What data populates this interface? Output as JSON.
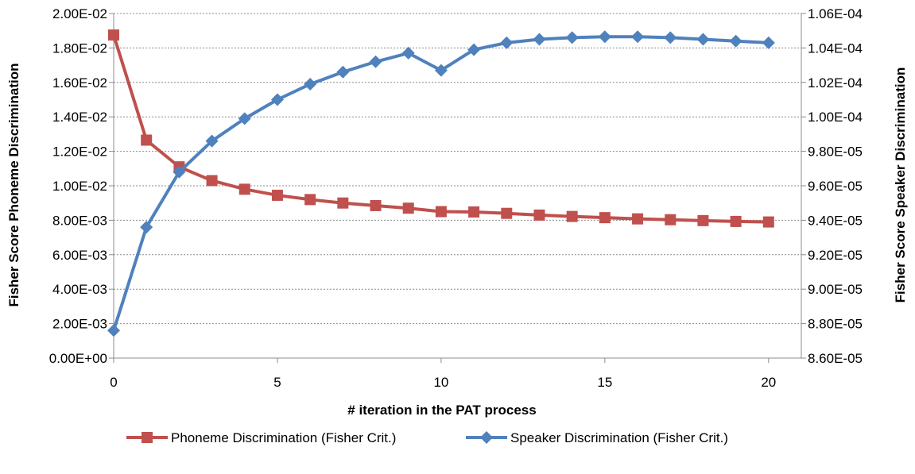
{
  "chart_data": {
    "type": "line",
    "title": "",
    "xlabel": "# iteration in the PAT process",
    "ylabel_left": "Fisher Score Phoneme Discrimination",
    "ylabel_right": "Fisher Score Speaker Discrimination",
    "xlim": [
      0,
      21
    ],
    "x_ticks": [
      0,
      5,
      10,
      15,
      20
    ],
    "x_tick_labels": [
      "0",
      "5",
      "10",
      "15",
      "20"
    ],
    "ylim_left": [
      0,
      0.02
    ],
    "y_ticks_left": [
      0,
      0.002,
      0.004,
      0.006,
      0.008,
      0.01,
      0.012,
      0.014,
      0.016,
      0.018,
      0.02
    ],
    "y_tick_labels_left": [
      "0.00E+00",
      "2.00E-03",
      "4.00E-03",
      "6.00E-03",
      "8.00E-03",
      "1.00E-02",
      "1.20E-02",
      "1.40E-02",
      "1.60E-02",
      "1.80E-02",
      "2.00E-02"
    ],
    "ylim_right": [
      8.6e-05,
      0.000106
    ],
    "y_ticks_right": [
      8.6e-05,
      8.8e-05,
      9e-05,
      9.2e-05,
      9.4e-05,
      9.6e-05,
      9.8e-05,
      0.0001,
      0.000102,
      0.000104,
      0.000106
    ],
    "y_tick_labels_right": [
      "8.60E-05",
      "8.80E-05",
      "9.00E-05",
      "9.20E-05",
      "9.40E-05",
      "9.60E-05",
      "9.80E-05",
      "1.00E-04",
      "1.02E-04",
      "1.04E-04",
      "1.06E-04"
    ],
    "grid": true,
    "legend_position": "bottom",
    "x": [
      0,
      1,
      2,
      3,
      4,
      5,
      6,
      7,
      8,
      9,
      10,
      11,
      12,
      13,
      14,
      15,
      16,
      17,
      18,
      19,
      20
    ],
    "series": [
      {
        "name": "Phoneme Discrimination (Fisher Crit.)",
        "axis": "left",
        "marker": "square",
        "color": "#c0504d",
        "values": [
          0.01875,
          0.01265,
          0.0111,
          0.0103,
          0.0098,
          0.00945,
          0.0092,
          0.009,
          0.00885,
          0.0087,
          0.0085,
          0.00848,
          0.0084,
          0.0083,
          0.00822,
          0.00815,
          0.00808,
          0.00803,
          0.00798,
          0.00793,
          0.0079
        ]
      },
      {
        "name": "Speaker Discrimination (Fisher Crit.)",
        "axis": "right",
        "marker": "diamond",
        "color": "#4f81bd",
        "values": [
          8.76e-05,
          9.36e-05,
          9.68e-05,
          9.86e-05,
          9.99e-05,
          0.000101,
          0.0001019,
          0.0001026,
          0.0001032,
          0.0001037,
          0.0001027,
          0.0001039,
          0.0001043,
          0.0001045,
          0.0001046,
          0.00010465,
          0.00010465,
          0.0001046,
          0.0001045,
          0.0001044,
          0.0001043
        ]
      }
    ]
  }
}
